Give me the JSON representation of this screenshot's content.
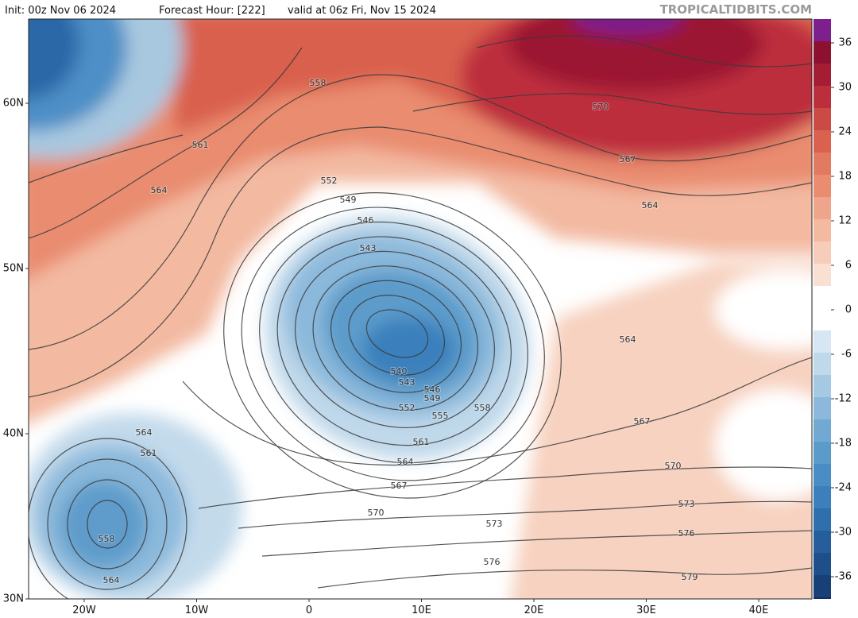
{
  "header": {
    "init": "Init: 00z Nov 06 2024",
    "forecast_hour": "Forecast Hour: [222]",
    "valid": "valid at 06z Fri, Nov 15 2024",
    "site": "TROPICALTIDBITS.COM"
  },
  "colorbar": {
    "ticks": [
      36,
      30,
      24,
      18,
      12,
      6,
      0,
      -6,
      -12,
      -18,
      -24,
      -30,
      -36
    ]
  },
  "axes": {
    "lat_labels": [
      "60N",
      "50N",
      "40N",
      "30N"
    ],
    "lon_labels": [
      "20W",
      "10W",
      "0",
      "10E",
      "20E",
      "30E",
      "40E"
    ]
  },
  "contour_labels": [
    "558",
    "561",
    "564",
    "552",
    "549",
    "546",
    "543",
    "540",
    "543",
    "546",
    "549",
    "552",
    "555",
    "558",
    "561",
    "564",
    "567",
    "570",
    "573",
    "576",
    "579",
    "576",
    "573",
    "570",
    "567",
    "564",
    "564",
    "567",
    "570",
    "564",
    "561",
    "558",
    "564"
  ]
}
